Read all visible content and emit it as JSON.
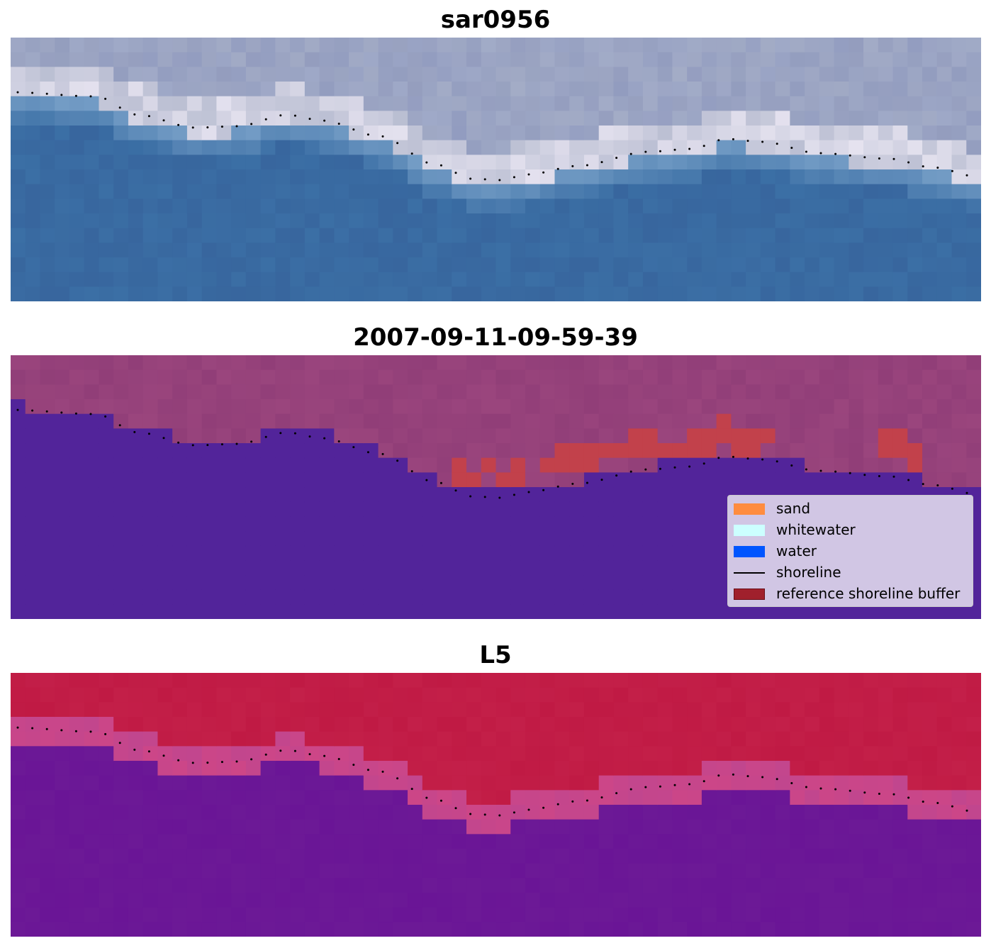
{
  "panels": [
    {
      "title": "sar0956",
      "kind": "rgb"
    },
    {
      "title": "2007-09-11-09-59-39",
      "kind": "classified"
    },
    {
      "title": "L5",
      "kind": "index"
    }
  ],
  "legend": {
    "items": [
      {
        "label": "sand",
        "type": "patch",
        "color": "#ff8c3f"
      },
      {
        "label": "whitewater",
        "type": "patch",
        "color": "#ccffff"
      },
      {
        "label": "water",
        "type": "patch",
        "color": "#0055ff"
      },
      {
        "label": "shoreline",
        "type": "line",
        "color": "#000000"
      },
      {
        "label": "reference shoreline buffer",
        "type": "patch",
        "color": "#a0202c"
      }
    ]
  },
  "colors": {
    "sar_water": "#3b6fa5",
    "sar_land": "#a5adc4",
    "class_water": "#52249a",
    "class_land": "#9a457d",
    "class_buffer": "#c2414b",
    "index_land": "#c01a44",
    "index_water": "#6a1596"
  }
}
